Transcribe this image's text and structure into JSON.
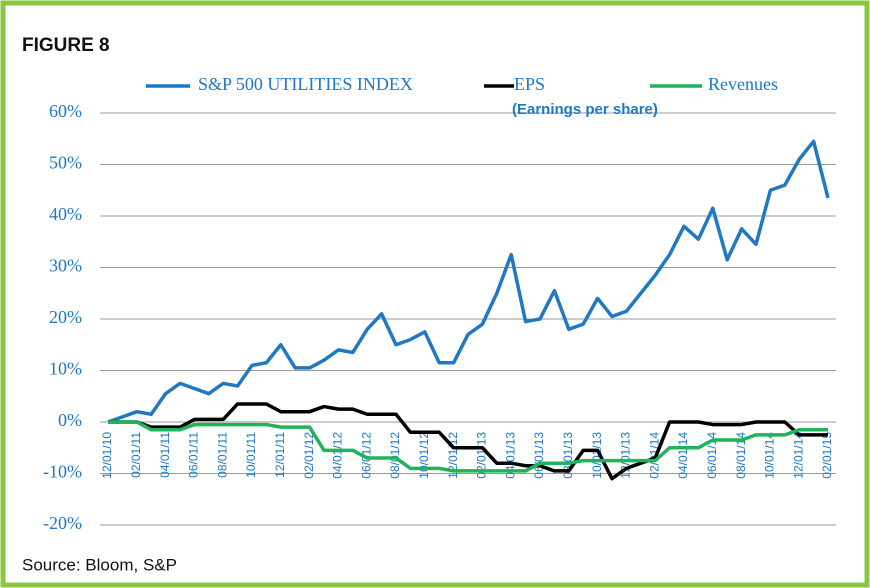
{
  "chart_data": {
    "type": "line",
    "title": "FIGURE 8",
    "source": "Source: Bloom, S&P",
    "categories": [
      "12/01/10",
      null,
      "02/01/11",
      null,
      "04/01/11",
      null,
      "06/01/11",
      null,
      "08/01/11",
      null,
      "10/01/11",
      null,
      "12/01/11",
      null,
      "02/01/12",
      null,
      "04/01/12",
      null,
      "06/01/12",
      null,
      "08/01/12",
      null,
      "10/01/12",
      null,
      "12/01/12",
      null,
      "02/01/13",
      null,
      "04/01/13",
      null,
      "06/01/13",
      null,
      "08/01/13",
      null,
      "10/01/13",
      null,
      "12/01/13",
      null,
      "02/01/14",
      null,
      "04/01/14",
      null,
      "06/01/14",
      null,
      "08/01/14",
      null,
      "10/01/14",
      null,
      "12/01/14",
      null,
      "02/01/15"
    ],
    "series": [
      {
        "name": "S&P 500 UTILITIES INDEX",
        "color": "#1f78c1",
        "values": [
          0,
          1,
          2,
          1.5,
          5.5,
          7.5,
          6.5,
          5.5,
          7.5,
          7,
          11,
          11.5,
          15,
          10.5,
          10.5,
          12,
          14,
          13.5,
          18,
          21,
          15,
          16,
          17.5,
          11.5,
          11.5,
          17,
          19,
          25,
          32.5,
          19.5,
          20,
          25.5,
          18,
          19,
          24,
          20.5,
          21.5,
          25,
          28.5,
          32.5,
          38,
          35.5,
          41.5,
          31.5,
          37.5,
          34.5,
          45,
          46,
          51,
          54.5,
          43.5
        ]
      },
      {
        "name": "EPS",
        "note": "(Earnings per share)",
        "color": "#000000",
        "values": [
          0,
          0,
          0,
          -1,
          -1,
          -1,
          0.5,
          0.5,
          0.5,
          3.5,
          3.5,
          3.5,
          2,
          2,
          2,
          3,
          2.5,
          2.5,
          1.5,
          1.5,
          1.5,
          -2,
          -2,
          -2,
          -5,
          -5,
          -5,
          -8,
          -8,
          -8.5,
          -8.5,
          -9.5,
          -9.5,
          -5.5,
          -5.5,
          -11,
          -9,
          -8,
          -7,
          0,
          0,
          0,
          -0.5,
          -0.5,
          -0.5,
          0,
          0,
          0,
          -2.5,
          -2.5,
          -2.5
        ]
      },
      {
        "name": "Revenues",
        "color": "#1fb35a",
        "values": [
          0,
          0,
          0,
          -1.5,
          -1.5,
          -1.5,
          -0.5,
          -0.5,
          -0.5,
          -0.5,
          -0.5,
          -0.5,
          -1,
          -1,
          -1,
          -5.5,
          -5.5,
          -5.5,
          -7,
          -7,
          -7,
          -9,
          -9,
          -9,
          -9.5,
          -9.5,
          -9.5,
          -9.5,
          -9.5,
          -9.5,
          -8,
          -8,
          -8,
          -7.5,
          -7.5,
          -7.5,
          -7.5,
          -7.5,
          -7.5,
          -5,
          -5,
          -5,
          -3.5,
          -3.5,
          -3.5,
          -2.5,
          -2.5,
          -2.5,
          -1.5,
          -1.5,
          -1.5
        ]
      }
    ],
    "ylim": [
      -20,
      60
    ],
    "yticks": [
      {
        "value": -20,
        "label": "-20%"
      },
      {
        "value": -10,
        "label": "-10%"
      },
      {
        "value": 0,
        "label": "0%"
      },
      {
        "value": 10,
        "label": "10%"
      },
      {
        "value": 20,
        "label": "20%"
      },
      {
        "value": 30,
        "label": "30%"
      },
      {
        "value": 40,
        "label": "40%"
      },
      {
        "value": 50,
        "label": "50%"
      },
      {
        "value": 60,
        "label": "60%"
      }
    ],
    "grid": true,
    "legend": "top",
    "tick_color": "#1f78c1",
    "frame_color": "#8cc63f"
  }
}
